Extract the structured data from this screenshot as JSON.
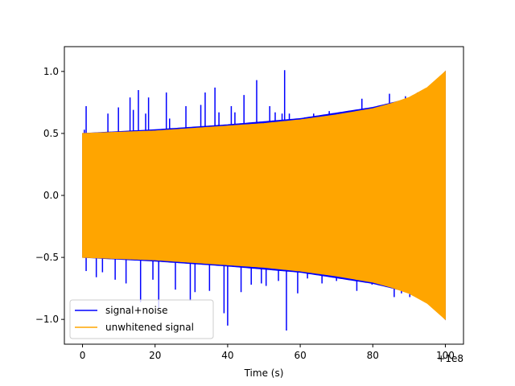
{
  "chart_data": {
    "type": "line",
    "title": "",
    "xlabel": "Time (s)",
    "ylabel": "",
    "x_offset_label": "+1e8",
    "xlim": [
      -5,
      105
    ],
    "ylim": [
      -1.2,
      1.2
    ],
    "x_ticks": [
      0,
      20,
      40,
      60,
      80,
      100
    ],
    "x_tick_labels": [
      "0",
      "20",
      "40",
      "60",
      "80",
      "100"
    ],
    "y_ticks": [
      1.0,
      0.5,
      0.0,
      -0.5,
      -1.0
    ],
    "y_tick_labels": [
      "1.0",
      "0.5",
      "0.0",
      "−0.5",
      "−1.0"
    ],
    "grid": false,
    "legend_position": "lower-left",
    "series": [
      {
        "name": "signal+noise",
        "color": "#0000ff",
        "envelope": {
          "t": [
            0,
            20,
            40,
            60,
            80,
            90,
            95,
            100
          ],
          "amplitude": [
            0.5,
            0.53,
            0.57,
            0.62,
            0.71,
            0.78,
            0.85,
            1.0
          ]
        },
        "spikes": [
          {
            "t": 0.5,
            "v": 0.53
          },
          {
            "t": 1.0,
            "v": -0.61
          },
          {
            "t": 1.0,
            "v": 0.72
          },
          {
            "t": 3.8,
            "v": -0.66
          },
          {
            "t": 5.5,
            "v": -0.62
          },
          {
            "t": 7.0,
            "v": 0.66
          },
          {
            "t": 9.0,
            "v": -0.68
          },
          {
            "t": 9.9,
            "v": 0.71
          },
          {
            "t": 12.0,
            "v": -0.71
          },
          {
            "t": 13.1,
            "v": 0.79
          },
          {
            "t": 14.0,
            "v": 0.69
          },
          {
            "t": 15.4,
            "v": 0.85
          },
          {
            "t": 16.0,
            "v": -0.86
          },
          {
            "t": 17.4,
            "v": 0.66
          },
          {
            "t": 18.2,
            "v": 0.79
          },
          {
            "t": 19.4,
            "v": -0.68
          },
          {
            "t": 21.0,
            "v": -0.91
          },
          {
            "t": 23.1,
            "v": 0.83
          },
          {
            "t": 24.0,
            "v": 0.62
          },
          {
            "t": 25.6,
            "v": -0.76
          },
          {
            "t": 28.5,
            "v": 0.72
          },
          {
            "t": 29.7,
            "v": -0.85
          },
          {
            "t": 31.0,
            "v": -0.78
          },
          {
            "t": 32.6,
            "v": 0.73
          },
          {
            "t": 33.8,
            "v": 0.83
          },
          {
            "t": 35.0,
            "v": -0.77
          },
          {
            "t": 36.5,
            "v": 0.87
          },
          {
            "t": 37.6,
            "v": 0.67
          },
          {
            "t": 39.0,
            "v": -0.95
          },
          {
            "t": 40.0,
            "v": -1.05
          },
          {
            "t": 41.0,
            "v": 0.72
          },
          {
            "t": 42.0,
            "v": 0.67
          },
          {
            "t": 43.7,
            "v": -0.78
          },
          {
            "t": 44.5,
            "v": 0.81
          },
          {
            "t": 46.5,
            "v": -0.72
          },
          {
            "t": 48.0,
            "v": 0.93
          },
          {
            "t": 49.3,
            "v": -0.71
          },
          {
            "t": 50.6,
            "v": -0.73
          },
          {
            "t": 51.6,
            "v": 0.72
          },
          {
            "t": 53.1,
            "v": 0.67
          },
          {
            "t": 54.0,
            "v": -0.69
          },
          {
            "t": 55.0,
            "v": 0.66
          },
          {
            "t": 55.7,
            "v": 1.01
          },
          {
            "t": 56.2,
            "v": -1.09
          },
          {
            "t": 57.0,
            "v": 0.66
          },
          {
            "t": 59.3,
            "v": -0.79
          },
          {
            "t": 61.3,
            "v": 0.63
          },
          {
            "t": 62.0,
            "v": -0.67
          },
          {
            "t": 63.7,
            "v": 0.66
          },
          {
            "t": 66.0,
            "v": -0.71
          },
          {
            "t": 68.0,
            "v": 0.68
          },
          {
            "t": 70.0,
            "v": -0.69
          },
          {
            "t": 72.0,
            "v": 0.66
          },
          {
            "t": 75.6,
            "v": -0.77
          },
          {
            "t": 77.0,
            "v": 0.78
          },
          {
            "t": 79.8,
            "v": -0.72
          },
          {
            "t": 81.7,
            "v": 0.69
          },
          {
            "t": 84.6,
            "v": 0.82
          },
          {
            "t": 85.9,
            "v": -0.82
          },
          {
            "t": 87.9,
            "v": -0.79
          },
          {
            "t": 89.0,
            "v": 0.8
          },
          {
            "t": 90.2,
            "v": -0.82
          },
          {
            "t": 92.3,
            "v": 0.83
          },
          {
            "t": 93.0,
            "v": -0.83
          }
        ]
      },
      {
        "name": "unwhitened signal",
        "color": "#ffa500",
        "envelope": {
          "t": [
            0,
            10,
            20,
            30,
            40,
            50,
            60,
            70,
            80,
            85,
            90,
            95,
            100
          ],
          "amplitude": [
            0.5,
            0.51,
            0.52,
            0.54,
            0.56,
            0.58,
            0.61,
            0.65,
            0.7,
            0.74,
            0.79,
            0.87,
            1.0
          ]
        }
      }
    ]
  }
}
